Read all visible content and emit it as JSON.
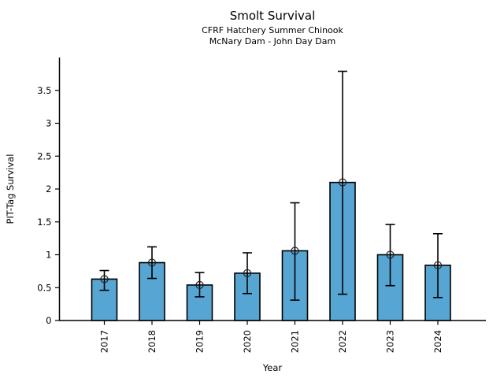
{
  "chart_data": {
    "type": "bar",
    "title": "Smolt Survival",
    "subtitle_line1": "CFRF Hatchery Summer Chinook",
    "subtitle_line2": "McNary Dam - John Day Dam",
    "xlabel": "Year",
    "ylabel": "PIT-Tag Survival",
    "categories": [
      "2017",
      "2018",
      "2019",
      "2020",
      "2021",
      "2022",
      "2023",
      "2024"
    ],
    "series": [
      {
        "name": "PIT-Tag Survival",
        "values": [
          0.63,
          0.88,
          0.54,
          0.72,
          1.06,
          2.1,
          1.0,
          0.84
        ],
        "error_low": [
          0.46,
          0.64,
          0.36,
          0.41,
          0.31,
          0.4,
          0.53,
          0.35
        ],
        "error_high": [
          0.76,
          1.12,
          0.73,
          1.03,
          1.79,
          3.79,
          1.46,
          1.32
        ]
      }
    ],
    "ylim": [
      0,
      4
    ],
    "yticks": [
      0,
      0.5,
      1,
      1.5,
      2,
      2.5,
      3,
      3.5
    ],
    "x_tick_rotation": 90,
    "grid": false,
    "legend": false,
    "marker": "open-circle",
    "bar_color": "#57A5D2",
    "bar_edge_color": "#000000",
    "error_color": "#000000",
    "axis_color": "#000000",
    "background_color": "#ffffff"
  }
}
